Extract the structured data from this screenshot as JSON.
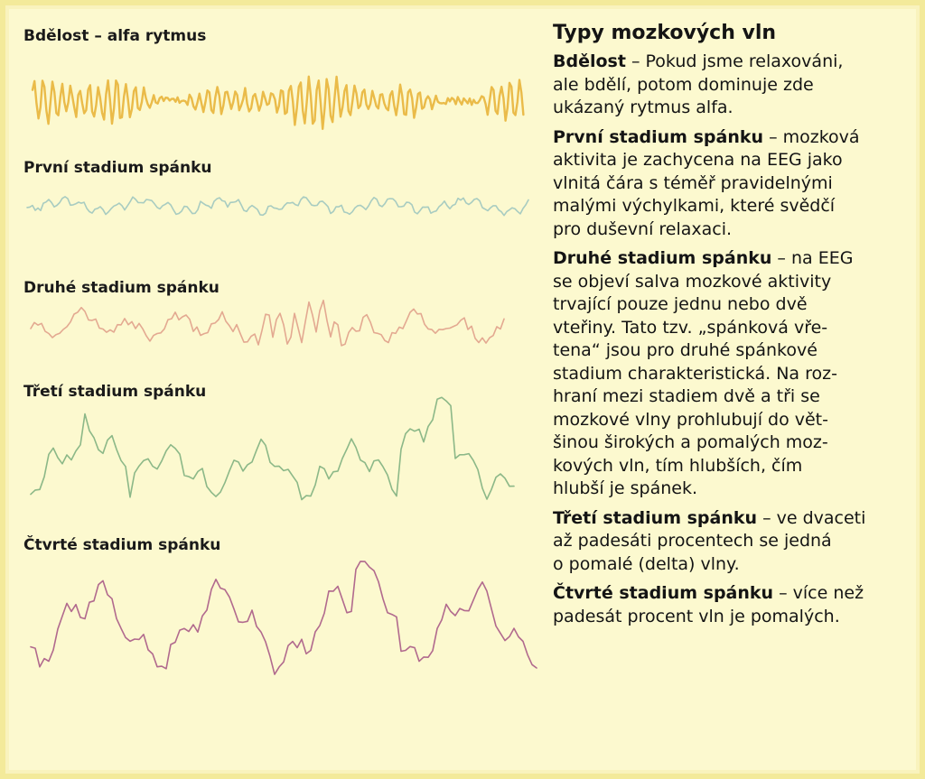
{
  "waves": [
    {
      "label": "Bdělost – alfa rytmus",
      "color": "#e8b43a",
      "name": "wave-awake-alpha"
    },
    {
      "label": "První stadium spánku",
      "color": "#9fc7bf",
      "name": "wave-stage-1"
    },
    {
      "label": "Druhé stadium spánku",
      "color": "#e0a08a",
      "name": "wave-stage-2"
    },
    {
      "label": "Třetí stadium spánku",
      "color": "#7fb07f",
      "name": "wave-stage-3"
    },
    {
      "label": "Čtvrté stadium spánku",
      "color": "#a85a86",
      "name": "wave-stage-4"
    }
  ],
  "panel": {
    "title": "Typy mozkových vln",
    "paragraphs": [
      {
        "lead": "Bdělost",
        "lines": [
          " – Pokud jsme relaxováni,",
          "ale bdělí, potom dominuje zde",
          "ukázaný rytmus alfa."
        ]
      },
      {
        "lead": "První stadium spánku",
        "lines": [
          " – mozková",
          "aktivita je zachycena na EEG jako",
          "vlnitá čára s téměř pravidelnými",
          "malými výchylkami, které svědčí",
          "pro duševní relaxaci."
        ]
      },
      {
        "lead": "Druhé stadium spánku",
        "lines": [
          " – na EEG",
          "se objeví salva mozkové aktivity",
          "trvající pouze jednu nebo dvě",
          "vteřiny. Tato tzv. „spánková vře-",
          "tena“ jsou pro druhé spánkové",
          "stadium charakteristická. Na roz-",
          "hraní mezi stadiem dvě a tři se",
          "mozkové vlny prohlubují do vět-",
          "šinou širokých a pomalých moz-",
          "kových vln, tím hlubších, čím",
          "hlubší je spánek."
        ]
      },
      {
        "lead": "Třetí stadium spánku",
        "lines": [
          " – ve dvaceti",
          "až padesáti procentech se jedná",
          "o pomalé (delta) vlny."
        ]
      },
      {
        "lead": "Čtvrté stadium spánku",
        "lines": [
          " – více než",
          "padesát procent vln je pomalých."
        ]
      }
    ]
  }
}
